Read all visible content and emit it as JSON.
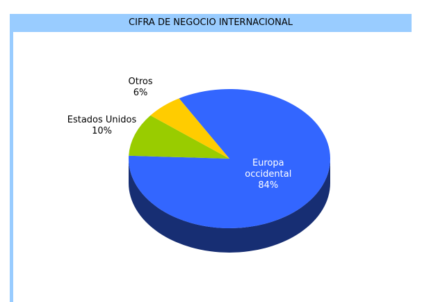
{
  "chart_data": {
    "type": "pie",
    "title": "CIFRA DE NEGOCIO INTERNACIONAL",
    "categories": [
      "Europa occidental",
      "Estados Unidos",
      "Otros"
    ],
    "values": [
      84,
      10,
      6
    ],
    "value_labels": [
      "84%",
      "10%",
      "6%"
    ],
    "colors": [
      "#3366ff",
      "#99cc00",
      "#ffcc00"
    ]
  }
}
